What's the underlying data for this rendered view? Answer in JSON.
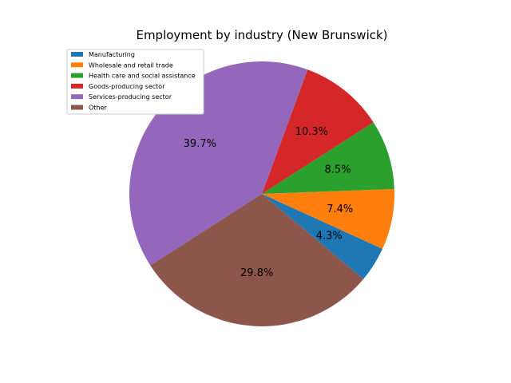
{
  "chart_data": {
    "type": "pie",
    "title": "Employment by industry (New Brunswick)",
    "categories": [
      "Manufacturing",
      "Wholesale and retail trade",
      "Health care and social assistance",
      "Goods-producing sector",
      "Services-producing sector",
      "Other"
    ],
    "values": [
      4.3,
      7.4,
      8.5,
      10.3,
      39.7,
      29.8
    ],
    "value_labels": [
      "4.3%",
      "7.4%",
      "8.5%",
      "10.3%",
      "39.7%",
      "29.8%"
    ],
    "colors": [
      "#1f77b4",
      "#ff7f0e",
      "#2ca02c",
      "#d62728",
      "#9467bd",
      "#8c564b"
    ],
    "start_angle_deg": -40,
    "direction": "counterclockwise",
    "legend_position": "upper-left"
  }
}
